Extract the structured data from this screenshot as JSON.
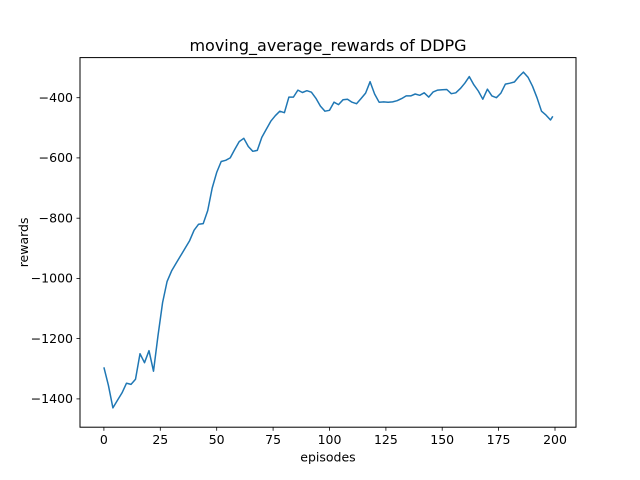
{
  "figure": {
    "background_color": "#ffffff",
    "text_color": "#000000"
  },
  "chart_data": {
    "type": "line",
    "title": "moving_average_rewards of DDPG",
    "xlabel": "episodes",
    "ylabel": "rewards",
    "grid": false,
    "legend": "none",
    "line_color": "#1f77b4",
    "line_width": 1.5,
    "xlim": [
      -10.6,
      209.3
    ],
    "ylim": [
      -1494,
      -267
    ],
    "xticks": [
      0,
      25,
      50,
      75,
      100,
      125,
      150,
      175,
      200
    ],
    "xtick_labels": [
      "0",
      "25",
      "50",
      "75",
      "100",
      "125",
      "150",
      "175",
      "200"
    ],
    "yticks": [
      -1400,
      -1200,
      -1000,
      -800,
      -600,
      -400
    ],
    "ytick_labels": [
      "−1400",
      "−1200",
      "−1000",
      "−800",
      "−600",
      "−400"
    ],
    "series": [
      {
        "name": "moving_average_rewards",
        "x": [
          0,
          2,
          4,
          6,
          8,
          10,
          12,
          14,
          16,
          18,
          20,
          22,
          24,
          26,
          28,
          30,
          32,
          34,
          36,
          38,
          40,
          42,
          44,
          46,
          48,
          50,
          52,
          54,
          56,
          58,
          60,
          62,
          64,
          66,
          68,
          70,
          72,
          74,
          76,
          78,
          80,
          82,
          84,
          86,
          88,
          90,
          92,
          94,
          96,
          98,
          100,
          102,
          104,
          106,
          108,
          110,
          112,
          114,
          116,
          118,
          120,
          122,
          124,
          126,
          128,
          130,
          132,
          134,
          136,
          138,
          140,
          142,
          144,
          146,
          148,
          150,
          152,
          154,
          156,
          158,
          160,
          162,
          164,
          166,
          168,
          170,
          172,
          174,
          176,
          178,
          180,
          182,
          184,
          186,
          188,
          190,
          192,
          194,
          196,
          198,
          199
        ],
        "y": [
          -1295,
          -1355,
          -1430,
          -1405,
          -1380,
          -1348,
          -1352,
          -1335,
          -1250,
          -1280,
          -1240,
          -1308,
          -1190,
          -1080,
          -1010,
          -975,
          -950,
          -925,
          -900,
          -875,
          -840,
          -820,
          -818,
          -775,
          -700,
          -648,
          -612,
          -608,
          -600,
          -572,
          -546,
          -535,
          -562,
          -578,
          -575,
          -532,
          -505,
          -478,
          -460,
          -445,
          -450,
          -398,
          -398,
          -375,
          -383,
          -377,
          -382,
          -402,
          -428,
          -445,
          -442,
          -415,
          -423,
          -407,
          -405,
          -415,
          -420,
          -403,
          -385,
          -347,
          -388,
          -415,
          -414,
          -415,
          -414,
          -410,
          -403,
          -394,
          -394,
          -388,
          -392,
          -384,
          -398,
          -381,
          -375,
          -374,
          -373,
          -387,
          -384,
          -370,
          -352,
          -330,
          -357,
          -378,
          -405,
          -372,
          -394,
          -400,
          -385,
          -355,
          -352,
          -348,
          -330,
          -315,
          -332,
          -362,
          -400,
          -445,
          -458,
          -474,
          -462
        ]
      }
    ]
  }
}
